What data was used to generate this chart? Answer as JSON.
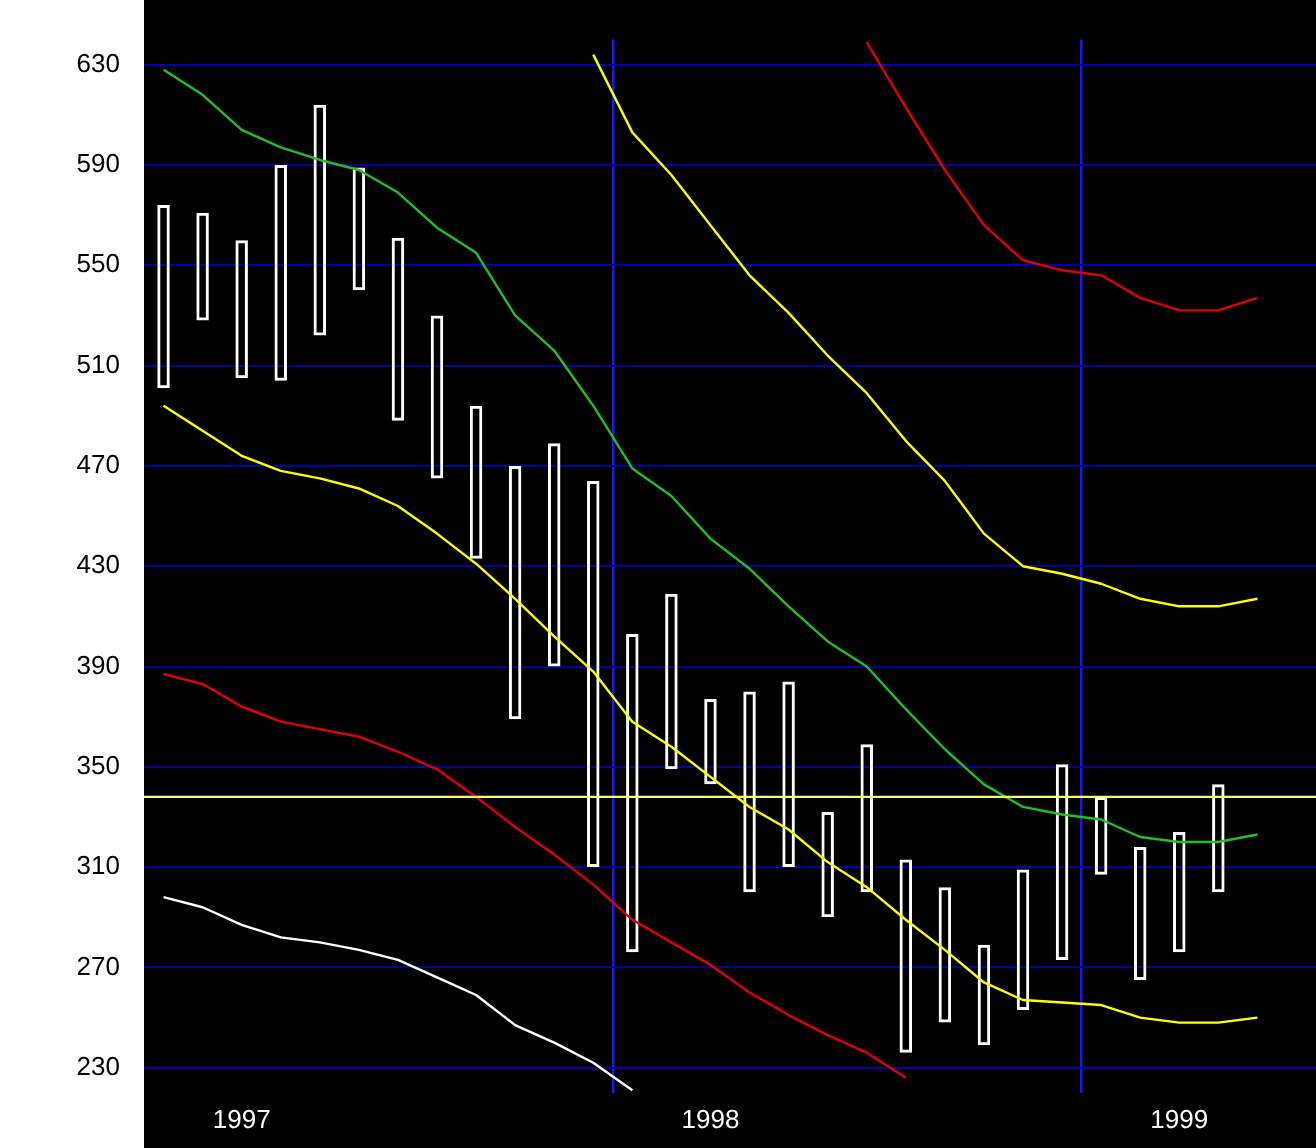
{
  "chart_data": {
    "type": "bar",
    "categories": [
      null,
      null,
      "1997",
      null,
      null,
      null,
      null,
      null,
      null,
      null,
      null,
      null,
      null,
      null,
      "1998",
      null,
      null,
      null,
      null,
      null,
      null,
      null,
      null,
      null,
      null,
      null,
      "1999",
      null,
      null,
      null
    ],
    "series": [
      {
        "color": "#ffffff",
        "base": [
          501,
          528,
          505,
          504,
          522,
          540,
          488,
          465,
          433,
          369,
          390,
          310,
          276,
          349,
          343,
          300,
          310,
          290,
          300,
          236,
          248,
          239,
          253,
          273,
          307,
          265,
          276,
          300,
          null,
          null
        ],
        "values": [
          73,
          43,
          55,
          86,
          92,
          49,
          73,
          65,
          61,
          101,
          89,
          154,
          127,
          70,
          34,
          80,
          74,
          42,
          59,
          77,
          54,
          40,
          56,
          78,
          31,
          53,
          48,
          43,
          null,
          null
        ]
      },
      {
        "type": "line",
        "color": "#20c020",
        "values": [
          628,
          618,
          604,
          597,
          592,
          588,
          579,
          565,
          555,
          530,
          516,
          494,
          469,
          458,
          441,
          429,
          414,
          400,
          390,
          373,
          357,
          343,
          334,
          331,
          329,
          322,
          320,
          320,
          323,
          null
        ]
      },
      {
        "type": "line",
        "color": "#ffff00",
        "values": [
          null,
          null,
          null,
          null,
          null,
          null,
          null,
          null,
          null,
          null,
          null,
          634,
          603,
          586,
          566,
          546,
          531,
          514,
          499,
          480,
          464,
          443,
          430,
          427,
          423,
          417,
          414,
          414,
          417,
          null
        ]
      },
      {
        "type": "line",
        "color": "#ffff00",
        "values": [
          494,
          484,
          474,
          468,
          465,
          461,
          454,
          443,
          431,
          417,
          402,
          388,
          368,
          358,
          346,
          334,
          325,
          312,
          302,
          289,
          277,
          264,
          257,
          256,
          255,
          250,
          248,
          248,
          250,
          null
        ]
      },
      {
        "type": "line",
        "color": "#e00000",
        "values": [
          null,
          null,
          null,
          null,
          null,
          null,
          null,
          null,
          null,
          null,
          null,
          null,
          null,
          null,
          null,
          null,
          null,
          null,
          639,
          613,
          588,
          566,
          552,
          548,
          546,
          537,
          532,
          532,
          537,
          null
        ]
      },
      {
        "type": "line",
        "color": "#e00000",
        "values": [
          387,
          383,
          374,
          368,
          365,
          362,
          356,
          349,
          338,
          326,
          315,
          303,
          289,
          280,
          271,
          260,
          251,
          243,
          236,
          226,
          null,
          null,
          null,
          null,
          null,
          null,
          null,
          null,
          null,
          null
        ]
      },
      {
        "type": "line",
        "color": "#ffffff",
        "values": [
          298,
          294,
          287,
          282,
          280,
          277,
          273,
          266,
          259,
          247,
          240,
          232,
          221,
          null,
          null,
          null,
          null,
          null,
          null,
          null,
          null,
          null,
          null,
          null,
          null,
          null,
          null,
          null,
          null,
          null
        ]
      }
    ],
    "ylim": [
      220,
      640
    ],
    "yticks": [
      230,
      270,
      310,
      350,
      390,
      430,
      470,
      510,
      550,
      590,
      630
    ],
    "ref_lines": [
      {
        "axis": "y",
        "value": 338,
        "color": "#ffff60"
      }
    ],
    "grid": true,
    "legend": false,
    "marker": "none"
  }
}
